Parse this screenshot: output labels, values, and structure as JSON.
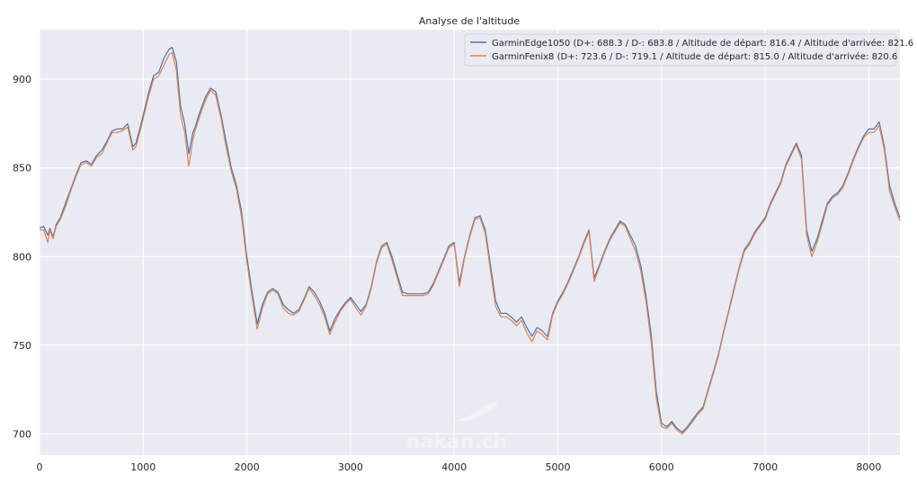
{
  "chart_data": {
    "type": "line",
    "title": "Analyse de l'altitude",
    "xlabel": "",
    "ylabel": "",
    "xlim": [
      0,
      8300
    ],
    "ylim": [
      688,
      928
    ],
    "xticks": [
      0,
      1000,
      2000,
      3000,
      4000,
      5000,
      6000,
      7000,
      8000
    ],
    "yticks": [
      700,
      750,
      800,
      850,
      900
    ],
    "grid": true,
    "legend_position": "top-right",
    "series": [
      {
        "name": "GarminEdge1050 (D+: 688.3 / D-: 683.8 / Altitude de départ: 816.4 / Altitude d'arrivée: 821.6",
        "color": "#4c72b0",
        "x": [
          0,
          40,
          80,
          100,
          130,
          160,
          200,
          250,
          300,
          350,
          400,
          450,
          500,
          550,
          600,
          650,
          700,
          750,
          800,
          850,
          900,
          930,
          980,
          1050,
          1100,
          1150,
          1200,
          1250,
          1280,
          1320,
          1360,
          1400,
          1440,
          1480,
          1500,
          1550,
          1600,
          1650,
          1700,
          1750,
          1800,
          1850,
          1900,
          1950,
          2000,
          2050,
          2100,
          2150,
          2200,
          2250,
          2300,
          2350,
          2400,
          2450,
          2500,
          2550,
          2600,
          2650,
          2700,
          2750,
          2800,
          2850,
          2900,
          2950,
          3000,
          3050,
          3100,
          3150,
          3200,
          3250,
          3300,
          3350,
          3400,
          3450,
          3500,
          3550,
          3600,
          3650,
          3700,
          3750,
          3800,
          3850,
          3900,
          3950,
          4000,
          4050,
          4100,
          4150,
          4200,
          4250,
          4300,
          4350,
          4400,
          4450,
          4500,
          4550,
          4600,
          4650,
          4700,
          4750,
          4800,
          4850,
          4900,
          4950,
          5000,
          5050,
          5100,
          5150,
          5200,
          5250,
          5300,
          5350,
          5400,
          5450,
          5500,
          5550,
          5600,
          5650,
          5700,
          5750,
          5800,
          5850,
          5900,
          5950,
          6000,
          6050,
          6100,
          6150,
          6200,
          6250,
          6300,
          6350,
          6400,
          6450,
          6500,
          6550,
          6600,
          6650,
          6700,
          6750,
          6800,
          6850,
          6900,
          6950,
          7000,
          7050,
          7100,
          7150,
          7200,
          7250,
          7300,
          7350,
          7400,
          7450,
          7500,
          7550,
          7600,
          7650,
          7700,
          7750,
          7800,
          7850,
          7900,
          7950,
          8000,
          8050,
          8100,
          8150,
          8200,
          8250,
          8300
        ],
        "values": [
          816,
          817,
          812,
          816,
          811,
          818,
          822,
          830,
          838,
          846,
          853,
          854,
          852,
          857,
          860,
          865,
          871,
          872,
          872,
          875,
          862,
          864,
          875,
          892,
          902,
          904,
          912,
          917,
          918,
          910,
          885,
          875,
          858,
          870,
          873,
          882,
          890,
          895,
          893,
          880,
          865,
          850,
          840,
          825,
          800,
          780,
          762,
          773,
          780,
          782,
          780,
          773,
          770,
          768,
          770,
          776,
          783,
          780,
          775,
          768,
          758,
          765,
          770,
          774,
          777,
          773,
          769,
          773,
          783,
          797,
          806,
          808,
          800,
          790,
          780,
          779,
          779,
          779,
          779,
          780,
          785,
          792,
          799,
          806,
          808,
          785,
          800,
          812,
          822,
          823,
          815,
          795,
          775,
          768,
          768,
          766,
          763,
          766,
          760,
          755,
          760,
          758,
          755,
          768,
          775,
          780,
          786,
          793,
          800,
          808,
          815,
          788,
          795,
          803,
          810,
          815,
          820,
          818,
          812,
          806,
          795,
          778,
          756,
          724,
          706,
          704,
          707,
          703,
          701,
          704,
          708,
          712,
          715,
          725,
          735,
          745,
          758,
          770,
          782,
          794,
          804,
          808,
          814,
          818,
          822,
          830,
          836,
          842,
          852,
          858,
          864,
          857,
          815,
          803,
          810,
          820,
          830,
          834,
          836,
          840,
          847,
          855,
          862,
          868,
          872,
          872,
          876,
          862,
          840,
          830,
          822
        ]
      },
      {
        "name": "GarminFenix8 (D+: 723.6 / D-: 719.1 / Altitude de départ: 815.0 / Altitude d'arrivée: 820.6",
        "color": "#dd8452",
        "x": [
          0,
          40,
          80,
          100,
          130,
          160,
          200,
          250,
          300,
          350,
          400,
          450,
          500,
          550,
          600,
          650,
          700,
          750,
          800,
          850,
          900,
          930,
          980,
          1050,
          1100,
          1150,
          1200,
          1250,
          1280,
          1320,
          1360,
          1400,
          1440,
          1480,
          1500,
          1550,
          1600,
          1650,
          1700,
          1750,
          1800,
          1850,
          1900,
          1950,
          2000,
          2050,
          2100,
          2150,
          2200,
          2250,
          2300,
          2350,
          2400,
          2450,
          2500,
          2550,
          2600,
          2650,
          2700,
          2750,
          2800,
          2850,
          2900,
          2950,
          3000,
          3050,
          3100,
          3150,
          3200,
          3250,
          3300,
          3350,
          3400,
          3450,
          3500,
          3550,
          3600,
          3650,
          3700,
          3750,
          3800,
          3850,
          3900,
          3950,
          4000,
          4050,
          4100,
          4150,
          4200,
          4250,
          4300,
          4350,
          4400,
          4450,
          4500,
          4550,
          4600,
          4650,
          4700,
          4750,
          4800,
          4850,
          4900,
          4950,
          5000,
          5050,
          5100,
          5150,
          5200,
          5250,
          5300,
          5350,
          5400,
          5450,
          5500,
          5550,
          5600,
          5650,
          5700,
          5750,
          5800,
          5850,
          5900,
          5950,
          6000,
          6050,
          6100,
          6150,
          6200,
          6250,
          6300,
          6350,
          6400,
          6450,
          6500,
          6550,
          6600,
          6650,
          6700,
          6750,
          6800,
          6850,
          6900,
          6950,
          7000,
          7050,
          7100,
          7150,
          7200,
          7250,
          7300,
          7350,
          7400,
          7450,
          7500,
          7550,
          7600,
          7650,
          7700,
          7750,
          7800,
          7850,
          7900,
          7950,
          8000,
          8050,
          8100,
          8150,
          8200,
          8250,
          8300
        ],
        "values": [
          815,
          815,
          808,
          815,
          810,
          817,
          821,
          828,
          837,
          845,
          852,
          853,
          851,
          856,
          858,
          864,
          870,
          870,
          871,
          873,
          860,
          862,
          873,
          890,
          900,
          902,
          908,
          914,
          915,
          905,
          880,
          870,
          851,
          866,
          871,
          880,
          888,
          894,
          891,
          878,
          862,
          848,
          838,
          822,
          797,
          777,
          759,
          771,
          779,
          781,
          779,
          771,
          768,
          767,
          769,
          775,
          782,
          778,
          773,
          766,
          756,
          763,
          769,
          773,
          776,
          771,
          767,
          772,
          782,
          796,
          805,
          807,
          798,
          788,
          778,
          778,
          778,
          778,
          778,
          779,
          784,
          791,
          798,
          805,
          807,
          783,
          799,
          811,
          821,
          822,
          813,
          792,
          772,
          766,
          766,
          764,
          761,
          764,
          757,
          752,
          758,
          756,
          753,
          767,
          774,
          779,
          785,
          792,
          799,
          807,
          814,
          786,
          794,
          802,
          809,
          814,
          819,
          817,
          810,
          803,
          792,
          775,
          752,
          720,
          704,
          703,
          706,
          702,
          700,
          703,
          707,
          711,
          714,
          724,
          734,
          744,
          757,
          769,
          781,
          793,
          803,
          807,
          813,
          817,
          821,
          829,
          835,
          841,
          851,
          857,
          863,
          855,
          812,
          800,
          808,
          818,
          829,
          833,
          835,
          839,
          846,
          854,
          861,
          867,
          870,
          870,
          874,
          860,
          837,
          828,
          820
        ]
      }
    ],
    "watermark": "nakan.ch"
  }
}
